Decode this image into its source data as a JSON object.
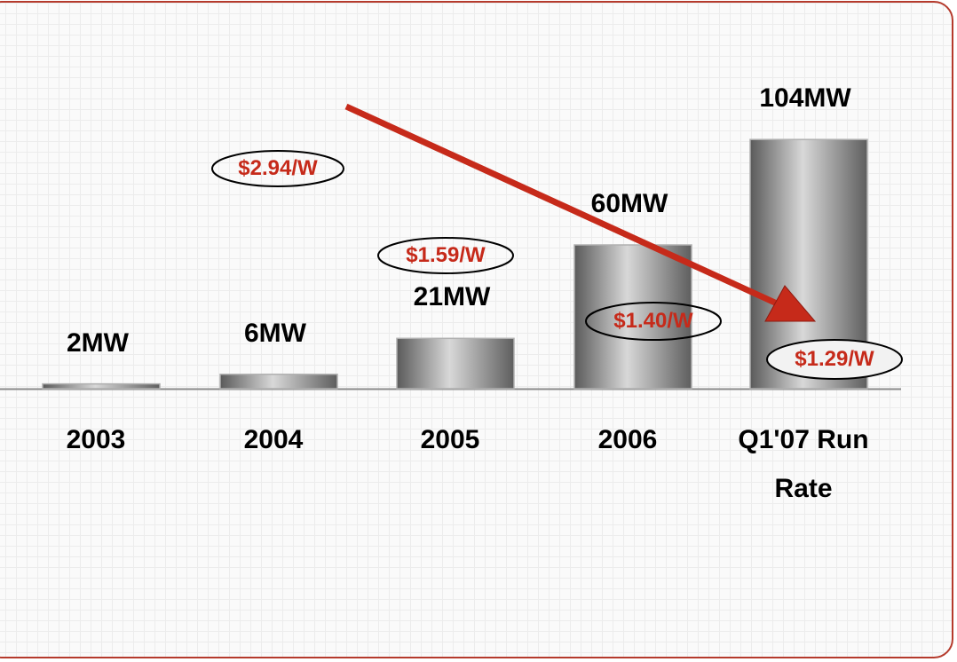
{
  "chart_data": {
    "type": "bar",
    "categories": [
      "2003",
      "2004",
      "2005",
      "2006",
      "Q1'07 Run Rate"
    ],
    "values": [
      2,
      6,
      21,
      60,
      104
    ],
    "value_labels": [
      "2MW",
      "6MW",
      "21MW",
      "60MW",
      "104MW"
    ],
    "color": "#8c8c8c",
    "annotations": [
      "$2.94/W",
      "$1.59/W",
      "$1.40/W",
      "$1.29/W"
    ]
  }
}
